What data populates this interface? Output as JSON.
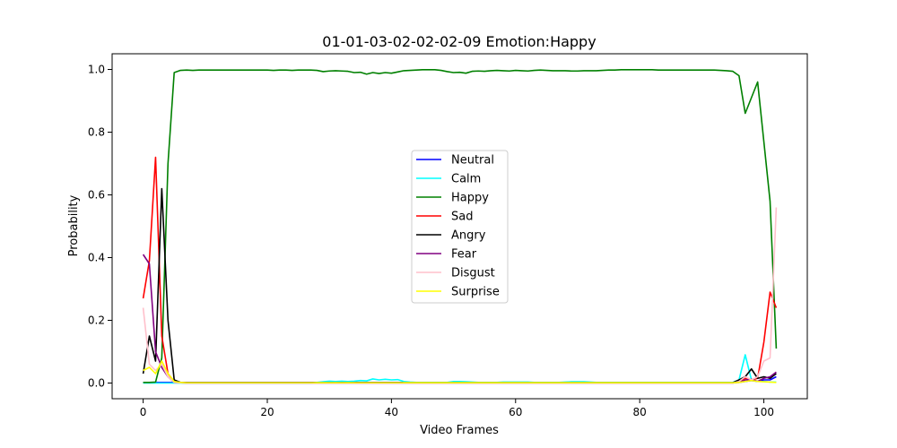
{
  "chart_data": {
    "type": "line",
    "title": "01-01-03-02-02-02-09 Emotion:Happy",
    "xlabel": "Video Frames",
    "ylabel": "Probability",
    "xlim": [
      -5,
      107
    ],
    "ylim": [
      -0.05,
      1.05
    ],
    "xticks": [
      0,
      20,
      40,
      60,
      80,
      100
    ],
    "yticks": [
      0.0,
      0.2,
      0.4,
      0.6,
      0.8,
      1.0
    ],
    "xtick_labels": [
      "0",
      "20",
      "40",
      "60",
      "80",
      "100"
    ],
    "ytick_labels": [
      "0.0",
      "0.2",
      "0.4",
      "0.6",
      "0.8",
      "1.0"
    ],
    "grid": false,
    "legend_position": "center",
    "x": [
      0,
      1,
      2,
      3,
      4,
      5,
      6,
      7,
      8,
      9,
      10,
      11,
      12,
      13,
      14,
      15,
      16,
      17,
      18,
      19,
      20,
      21,
      22,
      23,
      24,
      25,
      26,
      27,
      28,
      29,
      30,
      31,
      32,
      33,
      34,
      35,
      36,
      37,
      38,
      39,
      40,
      41,
      42,
      43,
      44,
      45,
      46,
      47,
      48,
      49,
      50,
      51,
      52,
      53,
      54,
      55,
      56,
      57,
      58,
      59,
      60,
      61,
      62,
      63,
      64,
      65,
      66,
      67,
      68,
      69,
      70,
      71,
      72,
      73,
      74,
      75,
      76,
      77,
      78,
      79,
      80,
      81,
      82,
      83,
      84,
      85,
      86,
      87,
      88,
      89,
      90,
      91,
      92,
      93,
      94,
      95,
      96,
      97,
      98,
      99,
      100,
      101,
      102
    ],
    "series": [
      {
        "name": "Neutral",
        "color": "#0000ff",
        "values": [
          0.002,
          0.002,
          0.002,
          0.002,
          0.002,
          0.002,
          0.002,
          0.002,
          0.002,
          0.002,
          0.002,
          0.002,
          0.002,
          0.002,
          0.002,
          0.002,
          0.002,
          0.002,
          0.002,
          0.002,
          0.002,
          0.002,
          0.002,
          0.002,
          0.002,
          0.002,
          0.002,
          0.002,
          0.002,
          0.002,
          0.002,
          0.002,
          0.002,
          0.002,
          0.002,
          0.002,
          0.002,
          0.002,
          0.002,
          0.002,
          0.002,
          0.002,
          0.002,
          0.002,
          0.002,
          0.002,
          0.002,
          0.002,
          0.002,
          0.002,
          0.002,
          0.002,
          0.002,
          0.002,
          0.002,
          0.002,
          0.002,
          0.002,
          0.002,
          0.002,
          0.002,
          0.002,
          0.002,
          0.002,
          0.002,
          0.002,
          0.002,
          0.002,
          0.002,
          0.002,
          0.002,
          0.002,
          0.002,
          0.002,
          0.002,
          0.002,
          0.002,
          0.002,
          0.002,
          0.002,
          0.002,
          0.002,
          0.002,
          0.002,
          0.002,
          0.002,
          0.002,
          0.002,
          0.002,
          0.002,
          0.002,
          0.002,
          0.002,
          0.002,
          0.002,
          0.002,
          0.002,
          0.005,
          0.008,
          0.005,
          0.01,
          0.01,
          0.02
        ]
      },
      {
        "name": "Calm",
        "color": "#00ffff",
        "values": [
          0.0,
          0.0,
          0.0,
          0.0,
          0.0,
          0.0,
          0.0,
          0.0,
          0.0,
          0.0,
          0.0,
          0.0,
          0.0,
          0.0,
          0.0,
          0.0,
          0.0,
          0.0,
          0.0,
          0.0,
          0.0,
          0.0,
          0.0,
          0.0,
          0.0,
          0.0,
          0.0,
          0.0,
          0.002,
          0.004,
          0.006,
          0.005,
          0.006,
          0.005,
          0.006,
          0.008,
          0.007,
          0.013,
          0.01,
          0.012,
          0.01,
          0.011,
          0.005,
          0.003,
          0.002,
          0.002,
          0.002,
          0.002,
          0.002,
          0.002,
          0.005,
          0.005,
          0.004,
          0.003,
          0.002,
          0.002,
          0.002,
          0.002,
          0.003,
          0.003,
          0.003,
          0.003,
          0.003,
          0.002,
          0.002,
          0.002,
          0.002,
          0.002,
          0.003,
          0.004,
          0.004,
          0.004,
          0.003,
          0.002,
          0.002,
          0.002,
          0.002,
          0.002,
          0.002,
          0.002,
          0.002,
          0.002,
          0.002,
          0.002,
          0.002,
          0.002,
          0.002,
          0.002,
          0.002,
          0.002,
          0.002,
          0.002,
          0.002,
          0.002,
          0.002,
          0.002,
          0.01,
          0.09,
          0.01,
          0.005,
          0.005,
          0.003,
          0.003
        ]
      },
      {
        "name": "Happy",
        "color": "#008000",
        "values": [
          0.002,
          0.002,
          0.003,
          0.08,
          0.7,
          0.99,
          0.997,
          0.998,
          0.997,
          0.998,
          0.998,
          0.998,
          0.998,
          0.998,
          0.998,
          0.998,
          0.998,
          0.998,
          0.998,
          0.998,
          0.998,
          0.997,
          0.998,
          0.998,
          0.997,
          0.998,
          0.998,
          0.998,
          0.997,
          0.993,
          0.995,
          0.996,
          0.995,
          0.994,
          0.99,
          0.991,
          0.985,
          0.99,
          0.987,
          0.99,
          0.988,
          0.992,
          0.996,
          0.997,
          0.998,
          0.999,
          0.999,
          0.999,
          0.997,
          0.993,
          0.99,
          0.991,
          0.988,
          0.994,
          0.995,
          0.994,
          0.996,
          0.997,
          0.996,
          0.995,
          0.997,
          0.996,
          0.995,
          0.997,
          0.998,
          0.997,
          0.996,
          0.996,
          0.996,
          0.995,
          0.995,
          0.996,
          0.996,
          0.996,
          0.997,
          0.998,
          0.998,
          0.999,
          0.999,
          0.999,
          0.999,
          0.999,
          0.999,
          0.998,
          0.998,
          0.998,
          0.998,
          0.998,
          0.998,
          0.998,
          0.998,
          0.998,
          0.998,
          0.997,
          0.996,
          0.994,
          0.98,
          0.86,
          0.91,
          0.96,
          0.77,
          0.58,
          0.11
        ]
      },
      {
        "name": "Sad",
        "color": "#ff0000",
        "values": [
          0.27,
          0.39,
          0.72,
          0.15,
          0.03,
          0.005,
          0.002,
          0.001,
          0.001,
          0.001,
          0.001,
          0.001,
          0.001,
          0.001,
          0.001,
          0.001,
          0.001,
          0.001,
          0.001,
          0.001,
          0.001,
          0.001,
          0.001,
          0.001,
          0.001,
          0.001,
          0.001,
          0.001,
          0.001,
          0.001,
          0.001,
          0.001,
          0.001,
          0.001,
          0.001,
          0.001,
          0.001,
          0.001,
          0.001,
          0.001,
          0.001,
          0.001,
          0.001,
          0.001,
          0.001,
          0.001,
          0.001,
          0.001,
          0.001,
          0.001,
          0.001,
          0.001,
          0.001,
          0.001,
          0.001,
          0.001,
          0.001,
          0.001,
          0.001,
          0.001,
          0.001,
          0.001,
          0.001,
          0.001,
          0.001,
          0.001,
          0.001,
          0.001,
          0.001,
          0.001,
          0.001,
          0.001,
          0.001,
          0.001,
          0.001,
          0.001,
          0.001,
          0.001,
          0.001,
          0.001,
          0.001,
          0.001,
          0.001,
          0.001,
          0.001,
          0.001,
          0.001,
          0.001,
          0.001,
          0.001,
          0.001,
          0.001,
          0.001,
          0.001,
          0.001,
          0.001,
          0.005,
          0.015,
          0.01,
          0.015,
          0.13,
          0.29,
          0.24
        ]
      },
      {
        "name": "Angry",
        "color": "#000000",
        "values": [
          0.03,
          0.15,
          0.07,
          0.62,
          0.2,
          0.01,
          0.002,
          0.001,
          0.001,
          0.001,
          0.001,
          0.001,
          0.001,
          0.001,
          0.001,
          0.001,
          0.001,
          0.001,
          0.001,
          0.001,
          0.001,
          0.001,
          0.001,
          0.001,
          0.001,
          0.001,
          0.001,
          0.001,
          0.001,
          0.001,
          0.001,
          0.001,
          0.001,
          0.001,
          0.001,
          0.001,
          0.001,
          0.001,
          0.001,
          0.001,
          0.001,
          0.001,
          0.001,
          0.001,
          0.001,
          0.001,
          0.001,
          0.001,
          0.001,
          0.001,
          0.001,
          0.001,
          0.001,
          0.001,
          0.001,
          0.001,
          0.001,
          0.001,
          0.001,
          0.001,
          0.001,
          0.001,
          0.001,
          0.001,
          0.001,
          0.001,
          0.001,
          0.001,
          0.001,
          0.001,
          0.001,
          0.001,
          0.001,
          0.001,
          0.001,
          0.001,
          0.001,
          0.001,
          0.001,
          0.001,
          0.001,
          0.001,
          0.001,
          0.001,
          0.001,
          0.001,
          0.001,
          0.001,
          0.001,
          0.001,
          0.001,
          0.001,
          0.001,
          0.001,
          0.001,
          0.001,
          0.01,
          0.02,
          0.045,
          0.015,
          0.02,
          0.015,
          0.03
        ]
      },
      {
        "name": "Fear",
        "color": "#800080",
        "values": [
          0.41,
          0.38,
          0.1,
          0.05,
          0.02,
          0.002,
          0.001,
          0.0,
          0.0,
          0.0,
          0.0,
          0.0,
          0.0,
          0.0,
          0.0,
          0.0,
          0.0,
          0.0,
          0.0,
          0.0,
          0.0,
          0.0,
          0.0,
          0.0,
          0.0,
          0.0,
          0.0,
          0.0,
          0.0,
          0.0,
          0.0,
          0.0,
          0.0,
          0.0,
          0.0,
          0.0,
          0.0,
          0.0,
          0.0,
          0.0,
          0.0,
          0.0,
          0.0,
          0.0,
          0.0,
          0.0,
          0.0,
          0.0,
          0.0,
          0.0,
          0.0,
          0.0,
          0.0,
          0.0,
          0.0,
          0.0,
          0.0,
          0.0,
          0.0,
          0.0,
          0.0,
          0.0,
          0.0,
          0.0,
          0.0,
          0.0,
          0.0,
          0.0,
          0.0,
          0.0,
          0.0,
          0.0,
          0.0,
          0.0,
          0.0,
          0.0,
          0.0,
          0.0,
          0.0,
          0.0,
          0.0,
          0.0,
          0.0,
          0.0,
          0.0,
          0.0,
          0.0,
          0.0,
          0.0,
          0.0,
          0.0,
          0.0,
          0.0,
          0.0,
          0.0,
          0.0,
          0.003,
          0.01,
          0.012,
          0.005,
          0.015,
          0.02,
          0.035
        ]
      },
      {
        "name": "Disgust",
        "color": "#ffc0cb",
        "values": [
          0.24,
          0.06,
          0.04,
          0.06,
          0.02,
          0.002,
          0.001,
          0.0,
          0.0,
          0.0,
          0.0,
          0.0,
          0.0,
          0.0,
          0.0,
          0.0,
          0.0,
          0.0,
          0.0,
          0.0,
          0.0,
          0.0,
          0.0,
          0.0,
          0.0,
          0.0,
          0.0,
          0.0,
          0.0,
          0.0,
          0.0,
          0.0,
          0.0,
          0.0,
          0.0,
          0.0,
          0.0,
          0.0,
          0.0,
          0.0,
          0.0,
          0.0,
          0.0,
          0.0,
          0.0,
          0.0,
          0.0,
          0.0,
          0.0,
          0.0,
          0.0,
          0.0,
          0.0,
          0.0,
          0.0,
          0.0,
          0.0,
          0.0,
          0.0,
          0.0,
          0.0,
          0.0,
          0.0,
          0.0,
          0.0,
          0.0,
          0.0,
          0.0,
          0.0,
          0.0,
          0.0,
          0.0,
          0.0,
          0.0,
          0.0,
          0.0,
          0.0,
          0.0,
          0.0,
          0.0,
          0.0,
          0.0,
          0.0,
          0.0,
          0.0,
          0.0,
          0.0,
          0.0,
          0.0,
          0.0,
          0.0,
          0.0,
          0.0,
          0.0,
          0.0,
          0.0,
          0.005,
          0.02,
          0.01,
          0.02,
          0.07,
          0.08,
          0.56
        ]
      },
      {
        "name": "Surprise",
        "color": "#ffff00",
        "values": [
          0.04,
          0.05,
          0.03,
          0.07,
          0.03,
          0.005,
          0.002,
          0.001,
          0.001,
          0.001,
          0.001,
          0.001,
          0.001,
          0.001,
          0.001,
          0.001,
          0.001,
          0.001,
          0.001,
          0.001,
          0.001,
          0.001,
          0.001,
          0.001,
          0.001,
          0.001,
          0.001,
          0.001,
          0.001,
          0.001,
          0.001,
          0.001,
          0.001,
          0.001,
          0.001,
          0.001,
          0.001,
          0.001,
          0.001,
          0.001,
          0.001,
          0.001,
          0.001,
          0.001,
          0.001,
          0.001,
          0.001,
          0.001,
          0.001,
          0.001,
          0.001,
          0.001,
          0.001,
          0.001,
          0.001,
          0.001,
          0.001,
          0.001,
          0.001,
          0.001,
          0.001,
          0.001,
          0.001,
          0.001,
          0.001,
          0.001,
          0.001,
          0.001,
          0.001,
          0.001,
          0.001,
          0.001,
          0.001,
          0.001,
          0.001,
          0.001,
          0.001,
          0.001,
          0.001,
          0.001,
          0.001,
          0.001,
          0.001,
          0.001,
          0.001,
          0.001,
          0.001,
          0.001,
          0.001,
          0.001,
          0.001,
          0.001,
          0.001,
          0.001,
          0.001,
          0.001,
          0.002,
          0.005,
          0.008,
          0.005,
          0.004,
          0.003,
          0.002
        ]
      }
    ]
  }
}
